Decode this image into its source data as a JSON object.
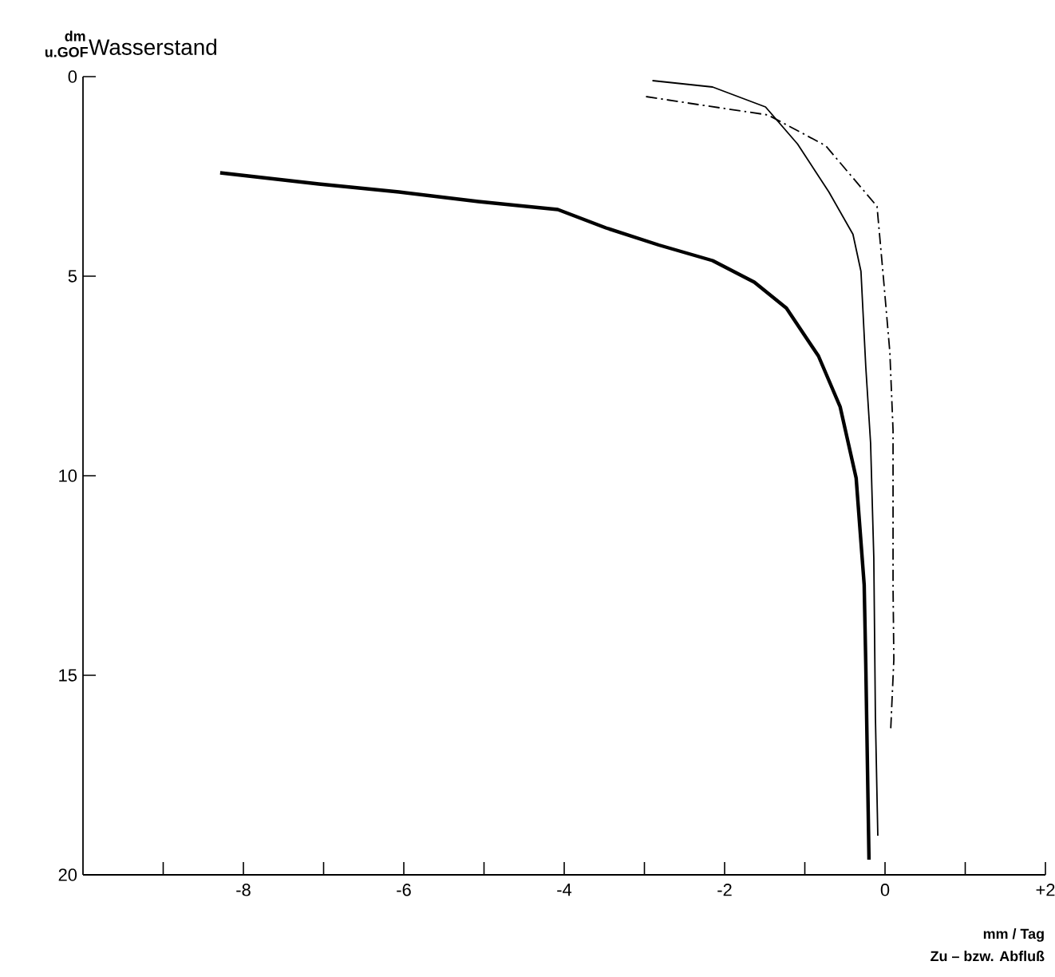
{
  "chart_data": {
    "type": "line",
    "title": "Wasserstand",
    "ylabel": "dm u.GOF",
    "xlabel": "mm / Tag",
    "annotations": [
      "Zu – bzw. Abfluß"
    ],
    "xlim": [
      -10,
      2
    ],
    "ylim": [
      20,
      0
    ],
    "xticks": [
      {
        "value": -9,
        "label": null
      },
      -8,
      {
        "value": -7,
        "label": null
      },
      -6,
      {
        "value": -5,
        "label": null
      },
      -4,
      {
        "value": -3,
        "label": null
      },
      -2,
      {
        "value": -1,
        "label": null
      },
      0,
      {
        "value": 1,
        "label": null
      },
      {
        "value": 2,
        "label": "+2"
      }
    ],
    "yticks": [
      0,
      5,
      10,
      15,
      20
    ],
    "grid": false,
    "series": [
      {
        "color": "#000000",
        "line_style": "solid",
        "x": [
          -8.29,
          -7.06,
          -6.06,
          -5.07,
          -4.08,
          -3.48,
          -2.82,
          -2.15,
          -1.63,
          -1.23,
          -0.83,
          -0.56,
          -0.36,
          -0.26,
          -0.24,
          -0.2
        ],
        "values": [
          2.41,
          2.69,
          2.89,
          3.13,
          3.33,
          3.79,
          4.22,
          4.61,
          5.15,
          5.8,
          7.0,
          8.27,
          10.06,
          12.73,
          14.72,
          19.62
        ]
      },
      {
        "color": "#000000",
        "line_style": "solid",
        "x": [
          -2.9,
          -2.15,
          -1.49,
          -1.09,
          -0.7,
          -0.4,
          -0.3,
          -0.24,
          -0.18,
          -0.14,
          -0.12,
          -0.09
        ],
        "values": [
          0.1,
          0.26,
          0.76,
          1.69,
          2.89,
          3.95,
          4.88,
          7.27,
          9.18,
          12.05,
          16.04,
          19.02
        ]
      },
      {
        "color": "#000000",
        "line_style": "dashdot",
        "x": [
          -2.98,
          -2.33,
          -1.46,
          -0.74,
          -0.1,
          -0.02,
          0.06,
          0.1,
          0.1,
          0.11,
          0.07
        ],
        "values": [
          0.5,
          0.7,
          0.96,
          1.73,
          3.25,
          5.04,
          6.9,
          8.86,
          12.77,
          14.6,
          16.4
        ]
      }
    ]
  }
}
